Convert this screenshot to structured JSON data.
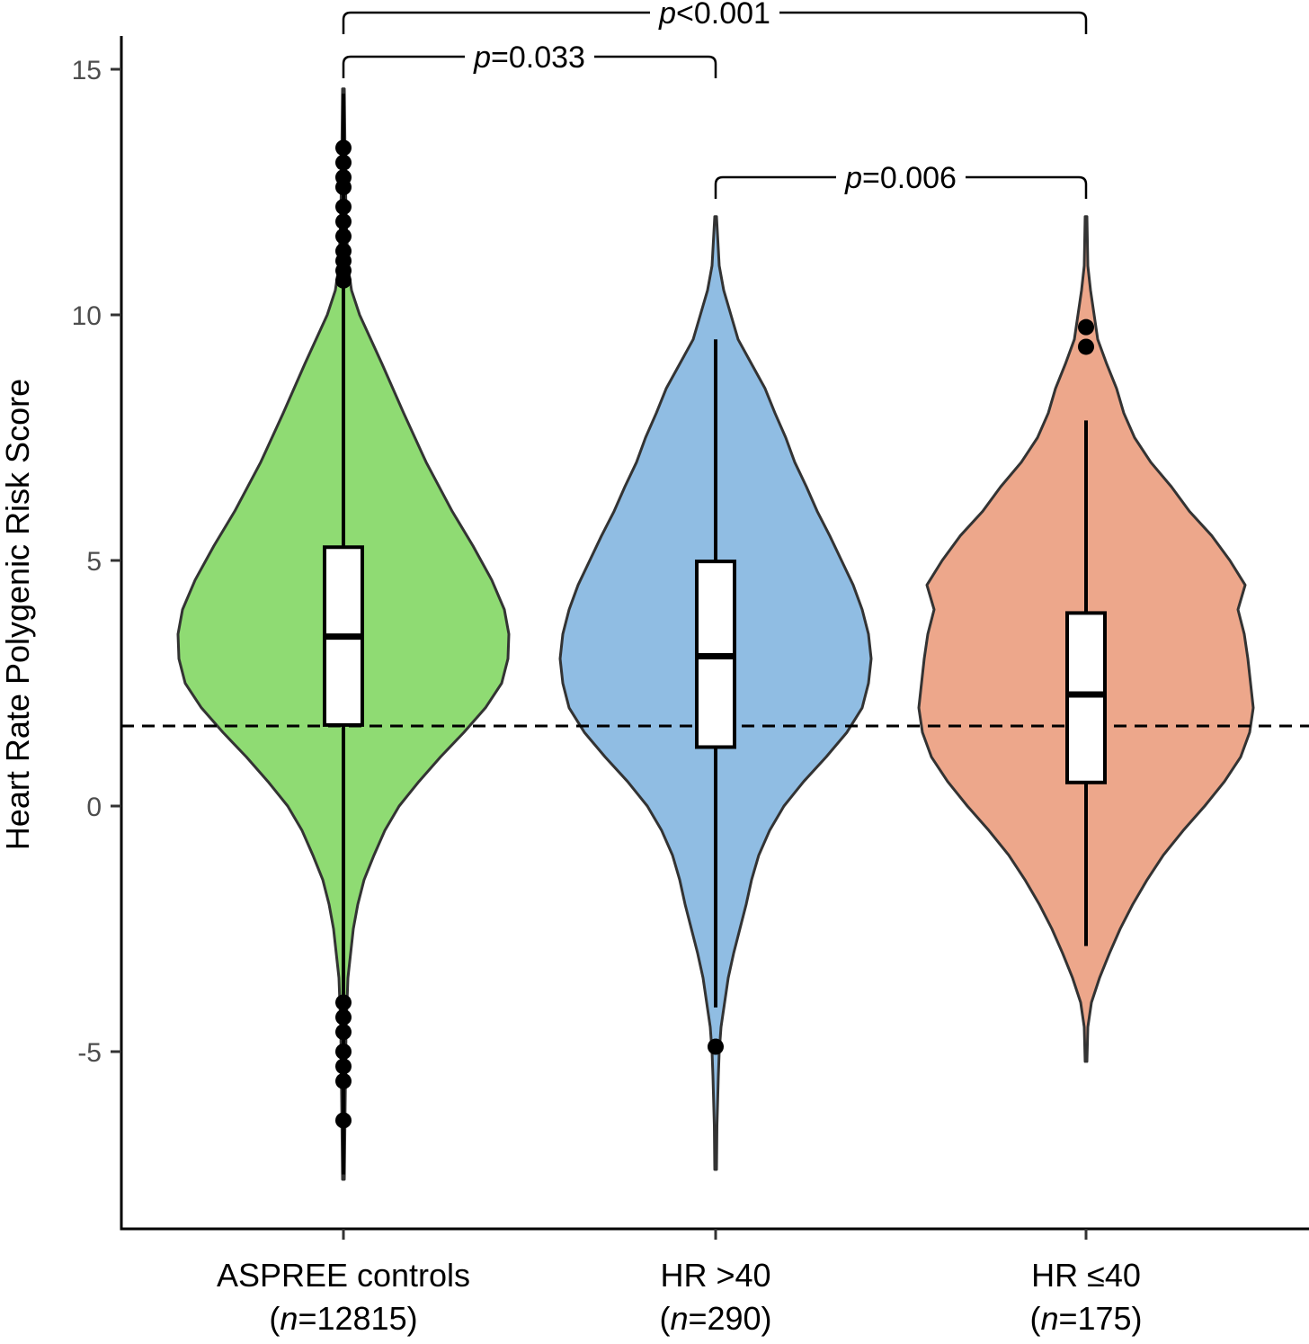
{
  "chart_data": {
    "type": "violin",
    "ylabel": "Heart Rate Polygenic Risk Score",
    "ylim": [
      -8.5,
      15.6
    ],
    "yticks": [
      15,
      10,
      5,
      0,
      -5
    ],
    "ytick_labels": [
      "15",
      "10",
      "5",
      "0",
      "-5"
    ],
    "reference_line": {
      "y": 1.63,
      "style": "dashed"
    },
    "groups": [
      {
        "name": "ASPREE controls",
        "n_label": "12815",
        "color": "#8fdb73",
        "box": {
          "q1": 1.65,
          "median": 3.45,
          "q3": 5.27
        },
        "whisker": {
          "min": -7.5,
          "max": 14.5
        },
        "outliers": [
          13.4,
          13.1,
          12.8,
          12.6,
          12.2,
          11.9,
          11.6,
          11.3,
          11.1,
          10.9,
          10.7,
          -4.0,
          -4.3,
          -4.6,
          -5.0,
          -5.3,
          -5.6,
          -6.4
        ]
      },
      {
        "name": "HR >40",
        "n_label": "290",
        "color": "#90bde3",
        "box": {
          "q1": 1.2,
          "median": 3.05,
          "q3": 4.98
        },
        "whisker": {
          "min": -4.1,
          "max": 9.5
        },
        "outliers": [
          -4.9
        ]
      },
      {
        "name": "HR ≤40",
        "n_label": "175",
        "color": "#eda78b",
        "box": {
          "q1": 0.48,
          "median": 2.27,
          "q3": 3.93
        },
        "whisker": {
          "min": -2.85,
          "max": 7.85
        },
        "outliers": [
          9.75,
          9.35
        ]
      }
    ],
    "comparisons": [
      {
        "from": 0,
        "to": 2,
        "p_italic": "p",
        "p_rest": "<0.001",
        "level": 2
      },
      {
        "from": 0,
        "to": 1,
        "p_italic": "p",
        "p_rest": "=0.033",
        "level": 1
      },
      {
        "from": 1,
        "to": 2,
        "p_italic": "p",
        "p_rest": "=0.006",
        "level": 0
      }
    ],
    "n_italic": "n",
    "grid": false,
    "legend": "none"
  }
}
